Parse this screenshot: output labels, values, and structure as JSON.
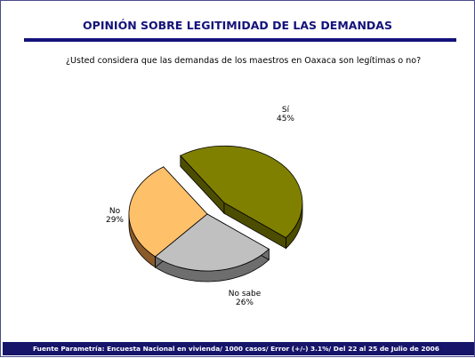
{
  "title": "OPINIÓN SOBRE LEGITIMIDAD DE LAS DEMANDAS",
  "question": "¿Usted considera que las demandas de los maestros en Oaxaca son legítimas o no?",
  "footer": "Fuente Parametría: Encuesta Nacional en vivienda/ 1000 casos/ Error (+/-) 3.1%/ Del 22 al 25 de Julio de 2006",
  "chart_data": {
    "type": "pie",
    "slices": [
      {
        "label": "Sí",
        "value": 45,
        "value_label": "45%",
        "color": "#808000",
        "side_color": "#4d4d00",
        "exploded": true
      },
      {
        "label": "No sabe",
        "value": 26,
        "value_label": "26%",
        "color": "#c0c0c0",
        "side_color": "#6e6e6e",
        "exploded": false
      },
      {
        "label": "No",
        "value": 29,
        "value_label": "29%",
        "color": "#ffc06a",
        "side_color": "#8a5a28",
        "exploded": false
      }
    ]
  }
}
